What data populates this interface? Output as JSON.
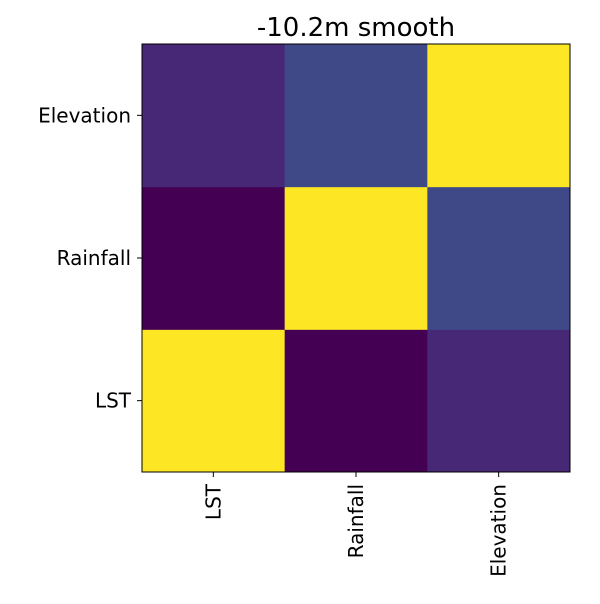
{
  "chart_data": {
    "type": "heatmap",
    "title": "-10.2m smooth",
    "x_categories": [
      "LST",
      "Rainfall",
      "Elevation"
    ],
    "y_categories": [
      "LST",
      "Rainfall",
      "Elevation"
    ],
    "y_order": "bottom-to-top",
    "values": [
      [
        1.0,
        -0.1,
        0.06
      ],
      [
        -0.1,
        1.0,
        0.2
      ],
      [
        0.06,
        0.2,
        1.0
      ]
    ],
    "color_range": [
      -0.1,
      1.0
    ],
    "colormap": "viridis",
    "xlabel": "",
    "ylabel": "",
    "grid": false,
    "legend": "none"
  }
}
